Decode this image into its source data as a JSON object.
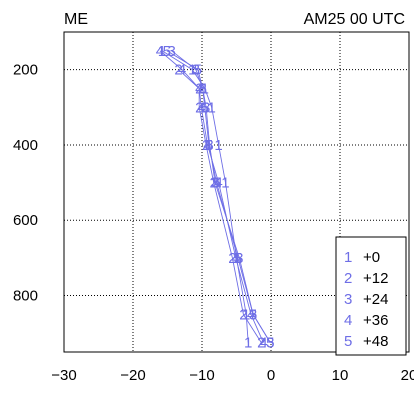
{
  "header": {
    "left_title": "ME",
    "right_title": "AM25 00 UTC"
  },
  "chart_data": {
    "type": "line",
    "x_ticks": [
      "−30",
      "−20",
      "−10",
      "0",
      "10",
      "20"
    ],
    "y_ticks": [
      "200",
      "400",
      "600",
      "800"
    ],
    "xlim": [
      -30,
      20
    ],
    "ylim": [
      100,
      950
    ],
    "y_inverted": true,
    "grid": true,
    "legend_placement": "bottom-right",
    "marker_color": "#6e6ee6",
    "series": [
      {
        "marker": "1",
        "name": "+0",
        "points": [
          {
            "x": -15.8,
            "y": 150
          },
          {
            "x": -11.4,
            "y": 200
          },
          {
            "x": -9.6,
            "y": 250
          },
          {
            "x": -8.6,
            "y": 300
          },
          {
            "x": -7.6,
            "y": 400
          },
          {
            "x": -6.6,
            "y": 500
          },
          {
            "x": -5.0,
            "y": 700
          },
          {
            "x": -3.6,
            "y": 850
          },
          {
            "x": -3.3,
            "y": 925
          }
        ]
      },
      {
        "marker": "2",
        "name": "+12",
        "points": [
          {
            "x": -13.4,
            "y": 200
          },
          {
            "x": -10.4,
            "y": 250
          },
          {
            "x": -10.4,
            "y": 300
          },
          {
            "x": -9.4,
            "y": 400
          },
          {
            "x": -8.3,
            "y": 500
          },
          {
            "x": -5.6,
            "y": 700
          },
          {
            "x": -4.0,
            "y": 850
          },
          {
            "x": -1.4,
            "y": 925
          }
        ]
      },
      {
        "marker": "3",
        "name": "+24",
        "points": [
          {
            "x": -14.4,
            "y": 150
          },
          {
            "x": -10.9,
            "y": 200
          },
          {
            "x": -9.9,
            "y": 250
          },
          {
            "x": -9.4,
            "y": 300
          },
          {
            "x": -8.9,
            "y": 400
          },
          {
            "x": -8.1,
            "y": 500
          },
          {
            "x": -4.6,
            "y": 700
          },
          {
            "x": -2.6,
            "y": 850
          },
          {
            "x": -0.1,
            "y": 925
          }
        ]
      },
      {
        "marker": "4",
        "name": "+36",
        "points": [
          {
            "x": -16.1,
            "y": 150
          },
          {
            "x": -12.9,
            "y": 200
          },
          {
            "x": -10.4,
            "y": 250
          },
          {
            "x": -10.1,
            "y": 300
          },
          {
            "x": -9.2,
            "y": 400
          },
          {
            "x": -7.6,
            "y": 500
          },
          {
            "x": -5.1,
            "y": 700
          },
          {
            "x": -2.9,
            "y": 850
          },
          {
            "x": -1.1,
            "y": 925
          }
        ]
      },
      {
        "marker": "5",
        "name": "+48",
        "points": [
          {
            "x": -15.1,
            "y": 150
          },
          {
            "x": -10.6,
            "y": 200
          },
          {
            "x": -9.9,
            "y": 250
          },
          {
            "x": -9.6,
            "y": 300
          },
          {
            "x": -9.0,
            "y": 400
          },
          {
            "x": -7.9,
            "y": 500
          },
          {
            "x": -4.8,
            "y": 700
          },
          {
            "x": -2.6,
            "y": 850
          },
          {
            "x": -0.1,
            "y": 925
          }
        ]
      }
    ],
    "legend": [
      {
        "marker": "1",
        "label": "+0"
      },
      {
        "marker": "2",
        "label": "+12"
      },
      {
        "marker": "3",
        "label": "+24"
      },
      {
        "marker": "4",
        "label": "+36"
      },
      {
        "marker": "5",
        "label": "+48"
      }
    ]
  }
}
